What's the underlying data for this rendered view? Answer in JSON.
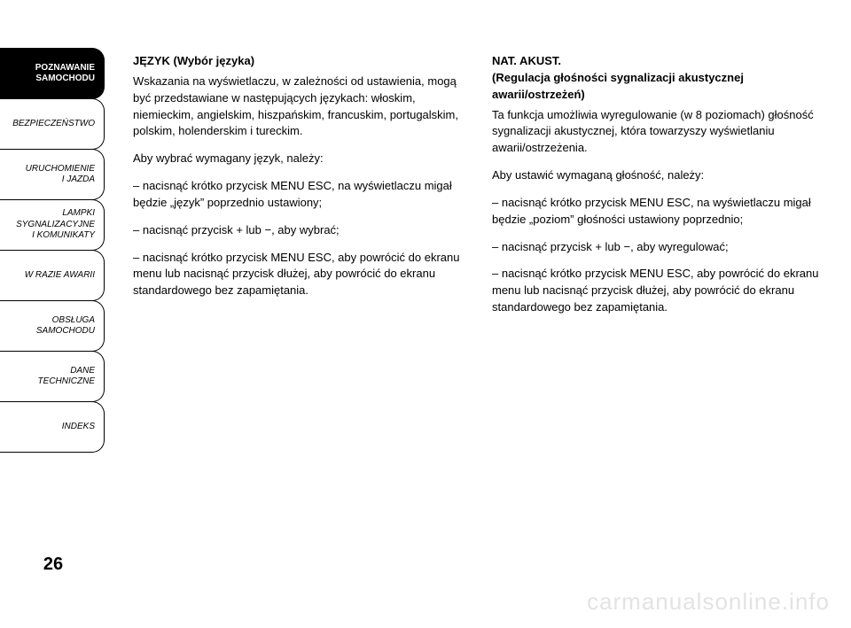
{
  "sidebar": {
    "tabs": [
      {
        "label": "POZNAWANIE\nSAMOCHODU",
        "active": true
      },
      {
        "label": "BEZPIECZEŃSTWO",
        "active": false
      },
      {
        "label": "URUCHOMIENIE\nI JAZDA",
        "active": false
      },
      {
        "label": "LAMPKI\nSYGNALIZACYJNE\nI KOMUNIKATY",
        "active": false
      },
      {
        "label": "W RAZIE AWARII",
        "active": false
      },
      {
        "label": "OBSŁUGA\nSAMOCHODU",
        "active": false
      },
      {
        "label": "DANE\nTECHNICZNE",
        "active": false
      },
      {
        "label": "INDEKS",
        "active": false
      }
    ]
  },
  "left": {
    "h": "JĘZYK (Wybór języka)",
    "p1": "Wskazania na wyświetlaczu, w zależności od ustawienia, mogą być przedstawiane w następujących językach: włoskim, niemieckim, angielskim, hiszpańskim, francuskim, portugalskim, polskim, holenderskim i tureckim.",
    "p2": "Aby wybrać wymagany język, należy:",
    "p3": "– nacisnąć krótko przycisk MENU ESC, na wyświetlaczu migał będzie „język” poprzednio ustawiony;",
    "p4": "– nacisnąć przycisk + lub −, aby wybrać;",
    "p5": "– nacisnąć krótko przycisk MENU ESC, aby powrócić do ekranu menu lub nacisnąć przycisk dłużej, aby powrócić do ekranu standardowego bez zapamiętania."
  },
  "right": {
    "h1": "NAT. AKUST.",
    "h2": "(Regulacja głośności sygnalizacji akustycznej awarii/ostrzeżeń)",
    "p1": "Ta funkcja umożliwia wyregulowanie (w 8 poziomach) głośność sygnalizacji akustycznej, która towarzyszy wyświetlaniu awarii/ostrzeżenia.",
    "p2": "Aby ustawić wymaganą głośność, należy:",
    "p3": "– nacisnąć krótko przycisk MENU ESC, na wyświetlaczu migał będzie „poziom” głośności ustawiony poprzednio;",
    "p4": "– nacisnąć przycisk + lub −, aby wyregulować;",
    "p5": "– nacisnąć krótko przycisk MENU ESC, aby powrócić do ekranu menu lub nacisnąć przycisk dłużej, aby powrócić do ekranu standardowego bez zapamiętania."
  },
  "page_number": "26",
  "watermark": "carmanualsonline.info",
  "colors": {
    "text": "#000000",
    "background": "#ffffff",
    "watermark": "#e3e3e3",
    "tab_active_bg": "#000000",
    "tab_active_fg": "#ffffff",
    "tab_border": "#000000"
  }
}
